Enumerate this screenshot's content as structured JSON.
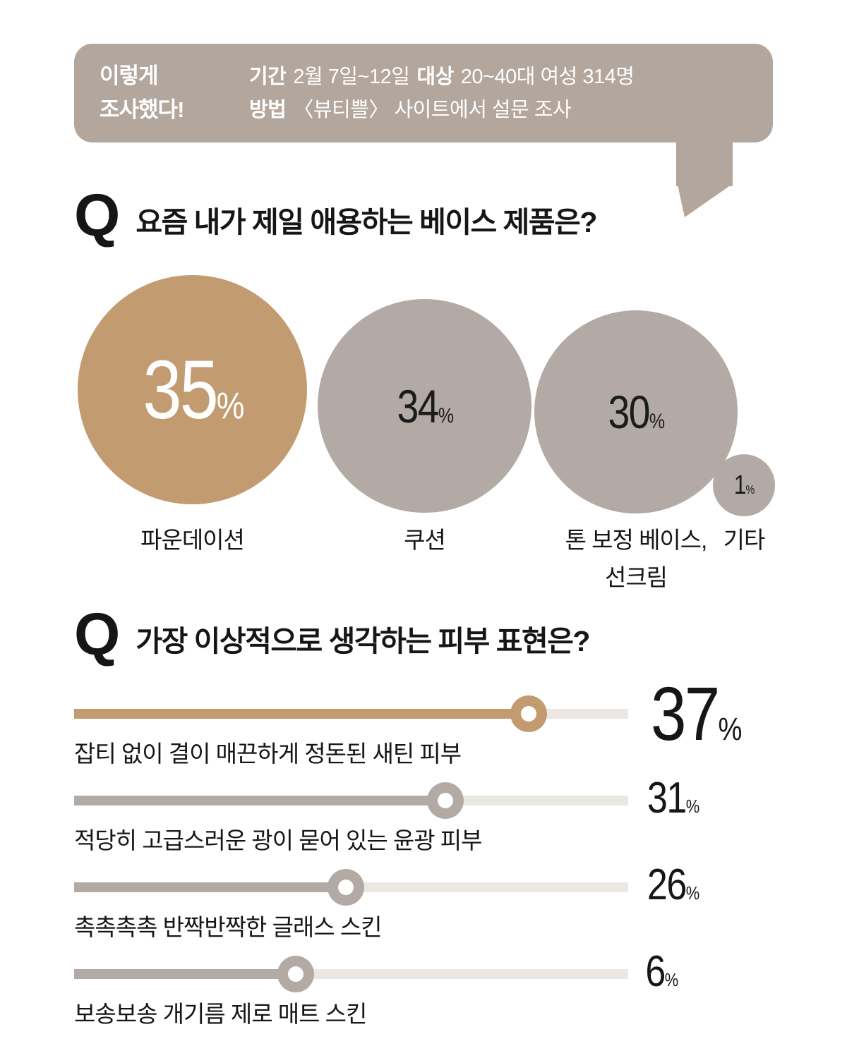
{
  "colors": {
    "tan": "#c39b70",
    "taupe": "#b3aaa6",
    "bubble_bg": "#b2a69d",
    "track": "#ebe7e3",
    "ink": "#161616"
  },
  "header": {
    "title_line1": "이렇게",
    "title_line2": "조사했다!",
    "rows": [
      {
        "label1": "기간",
        "text1": "2월 7일~12일",
        "label2": "대상",
        "text2": "20~40대 여성 314명"
      },
      {
        "label1": "방법",
        "text1": "〈뷰티쁠〉 사이트에서 설문 조사"
      }
    ]
  },
  "q1": {
    "q_mark": "Q",
    "title": "요즘 내가 제일 애용하는 베이스 제품은?",
    "bubbles": [
      {
        "value": "35",
        "unit": "%",
        "label": "파운데이션"
      },
      {
        "value": "34",
        "unit": "%",
        "label": "쿠션"
      },
      {
        "value": "30",
        "unit": "%",
        "label": "톤 보정 베이스,",
        "label_line2": "선크림"
      },
      {
        "value": "1",
        "unit": "%",
        "label": "기타"
      }
    ]
  },
  "q2": {
    "q_mark": "Q",
    "title": "가장 이상적으로 생각하는 피부 표현은?",
    "sliders": [
      {
        "value": "37",
        "unit": "%",
        "label": "잡티 없이 결이 매끈하게 정돈된 새틴 피부",
        "knob_pct": 82
      },
      {
        "value": "31",
        "unit": "%",
        "label": "적당히 고급스러운 광이 묻어 있는 윤광 피부",
        "knob_pct": 67
      },
      {
        "value": "26",
        "unit": "%",
        "label": "촉촉촉촉 반짝반짝한 글래스 스킨",
        "knob_pct": 49
      },
      {
        "value": "6",
        "unit": "%",
        "label": "보송보송 개기름 제로 매트 스킨",
        "knob_pct": 40
      }
    ]
  },
  "chart_data": [
    {
      "type": "bubble",
      "title": "요즘 내가 제일 애용하는 베이스 제품은?",
      "categories": [
        "파운데이션",
        "쿠션",
        "톤 보정 베이스, 선크림",
        "기타"
      ],
      "values": [
        35,
        34,
        30,
        1
      ],
      "unit": "%",
      "highlight_category": "파운데이션"
    },
    {
      "type": "bar",
      "title": "가장 이상적으로 생각하는 피부 표현은?",
      "categories": [
        "잡티 없이 결이 매끈하게 정돈된 새틴 피부",
        "적당히 고급스러운 광이 묻어 있는 윤광 피부",
        "촉촉촉촉 반짝반짝한 글래스 스킨",
        "보송보송 개기름 제로 매트 스킨"
      ],
      "values": [
        37,
        31,
        26,
        6
      ],
      "unit": "%",
      "highlight_category": "잡티 없이 결이 매끈하게 정돈된 새틴 피부"
    }
  ]
}
